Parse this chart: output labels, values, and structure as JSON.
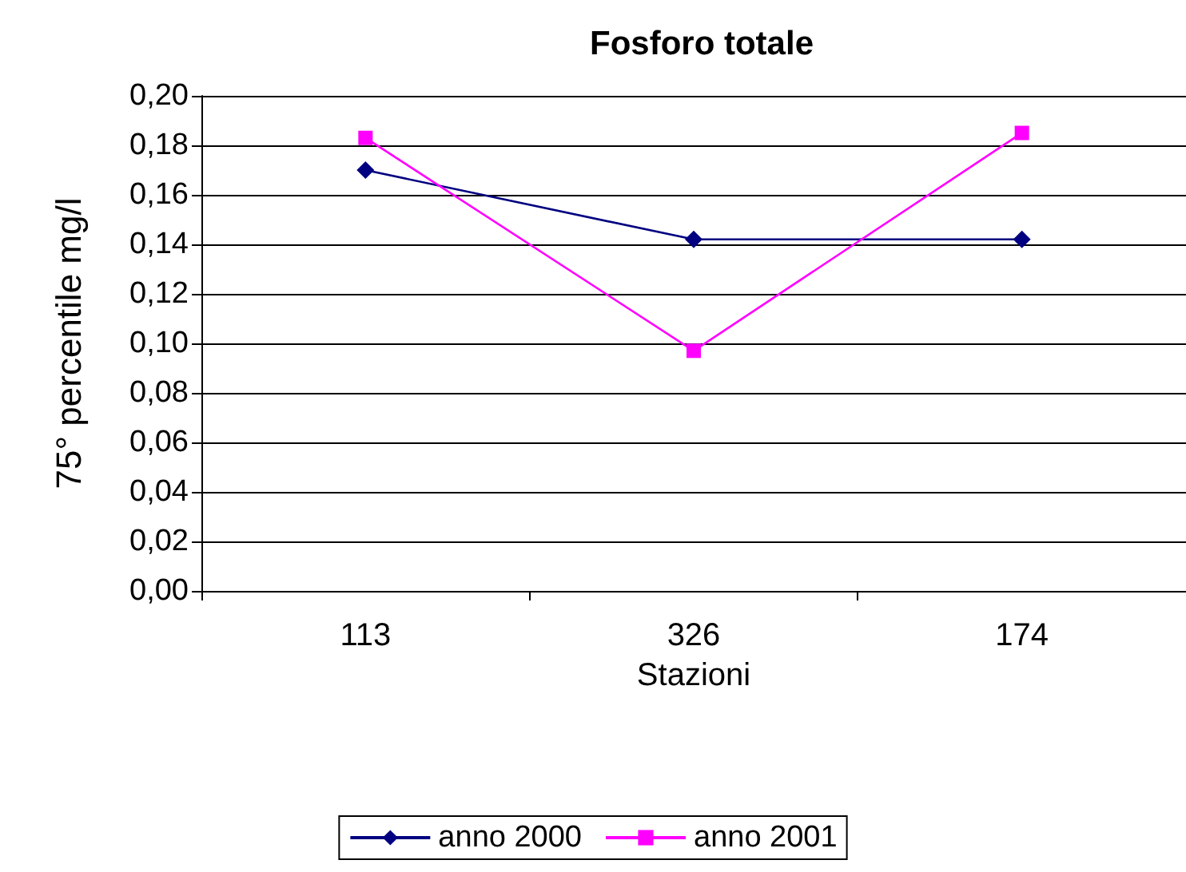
{
  "chart_data": {
    "type": "line",
    "title": "Fosforo totale",
    "xlabel": "Stazioni",
    "ylabel": "75° percentile mg/l",
    "categories": [
      "113",
      "326",
      "174"
    ],
    "series": [
      {
        "name": "anno 2000",
        "color": "#000080",
        "marker": "diamond",
        "values": [
          0.17,
          0.142,
          0.142
        ]
      },
      {
        "name": "anno 2001",
        "color": "#ff00ff",
        "marker": "square",
        "values": [
          0.183,
          0.097,
          0.185
        ]
      }
    ],
    "ylim": [
      0,
      0.2
    ],
    "yticks": [
      {
        "value": 0,
        "label": "0,00"
      },
      {
        "value": 0.02,
        "label": "0,02"
      },
      {
        "value": 0.04,
        "label": "0,04"
      },
      {
        "value": 0.06,
        "label": "0,06"
      },
      {
        "value": 0.08,
        "label": "0,08"
      },
      {
        "value": 0.1,
        "label": "0,10"
      },
      {
        "value": 0.12,
        "label": "0,12"
      },
      {
        "value": 0.14,
        "label": "0,14"
      },
      {
        "value": 0.16,
        "label": "0,16"
      },
      {
        "value": 0.18,
        "label": "0,18"
      },
      {
        "value": 0.2,
        "label": "0,20"
      }
    ],
    "grid": "y",
    "legend": "bottom"
  }
}
